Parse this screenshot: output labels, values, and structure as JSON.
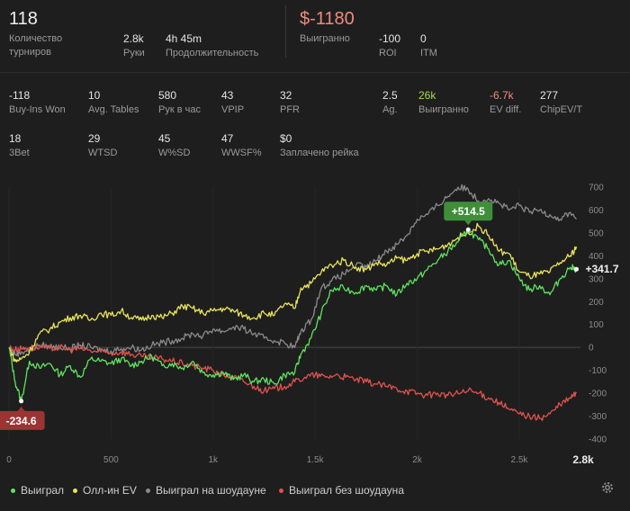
{
  "summary": {
    "tournaments_value": "118",
    "tournaments_label": "Количество турниров",
    "hands_value": "2.8k",
    "hands_label": "Руки",
    "duration_value": "4h 45m",
    "duration_label": "Продолжительность",
    "winnings_value": "$-1180",
    "winnings_label": "Выигранно",
    "roi_value": "-100",
    "roi_label": "ROI",
    "itm_value": "0",
    "itm_label": "ITM"
  },
  "stats_row1": [
    {
      "value": "-118",
      "label": "Buy-Ins Won"
    },
    {
      "value": "10",
      "label": "Avg. Tables"
    },
    {
      "value": "580",
      "label": "Рук в час"
    },
    {
      "value": "43",
      "label": "VPIP"
    },
    {
      "value": "32",
      "label": "PFR"
    },
    {
      "value": "2.5",
      "label": "Ag."
    },
    {
      "value": "26k",
      "label": "Выигранно"
    },
    {
      "value": "-6.7k",
      "label": "EV diff."
    },
    {
      "value": "277",
      "label": "ChipEV/T"
    }
  ],
  "stats_row2": [
    {
      "value": "18",
      "label": "3Bet"
    },
    {
      "value": "29",
      "label": "WTSD"
    },
    {
      "value": "45",
      "label": "W%SD"
    },
    {
      "value": "47",
      "label": "WWSF%"
    },
    {
      "value": "$0",
      "label": "Заплачено рейка"
    }
  ],
  "colors": {
    "won": "#5fe35f",
    "allin_ev": "#e9e45a",
    "showdown": "#8a8a8a",
    "non_showdown": "#e0524e",
    "positive_badge": "#3f8f3a",
    "negative_badge": "#9c3434"
  },
  "chart_data": {
    "type": "line",
    "xlim": [
      0,
      2800
    ],
    "ylim": [
      -400,
      700
    ],
    "xticks": [
      "0",
      "500",
      "1k",
      "1.5k",
      "2k",
      "2.5k"
    ],
    "xmax_label": "2.8k",
    "yticks": [
      "700",
      "600",
      "500",
      "400",
      "300",
      "200",
      "100",
      "0",
      "-100",
      "-200",
      "-300",
      "-400"
    ],
    "max_annotation": "+514.5",
    "min_annotation": "-234.6",
    "end_annotation": "+341.7",
    "series": [
      {
        "name": "Выиграл",
        "key": "won",
        "points": [
          [
            0,
            0
          ],
          [
            30,
            -150
          ],
          [
            60,
            -234.6
          ],
          [
            100,
            -60
          ],
          [
            150,
            -90
          ],
          [
            200,
            -70
          ],
          [
            250,
            -120
          ],
          [
            300,
            -80
          ],
          [
            350,
            -130
          ],
          [
            400,
            -50
          ],
          [
            450,
            -60
          ],
          [
            500,
            -70
          ],
          [
            550,
            -50
          ],
          [
            600,
            -80
          ],
          [
            650,
            -60
          ],
          [
            700,
            -40
          ],
          [
            750,
            -80
          ],
          [
            800,
            -70
          ],
          [
            850,
            -90
          ],
          [
            900,
            -60
          ],
          [
            950,
            -110
          ],
          [
            1000,
            -120
          ],
          [
            1050,
            -110
          ],
          [
            1100,
            -140
          ],
          [
            1150,
            -120
          ],
          [
            1200,
            -150
          ],
          [
            1250,
            -140
          ],
          [
            1300,
            -160
          ],
          [
            1350,
            -120
          ],
          [
            1400,
            -110
          ],
          [
            1430,
            -30
          ],
          [
            1480,
            40
          ],
          [
            1530,
            150
          ],
          [
            1580,
            250
          ],
          [
            1640,
            260
          ],
          [
            1700,
            240
          ],
          [
            1750,
            270
          ],
          [
            1800,
            250
          ],
          [
            1850,
            270
          ],
          [
            1900,
            230
          ],
          [
            1950,
            280
          ],
          [
            2000,
            300
          ],
          [
            2050,
            340
          ],
          [
            2100,
            380
          ],
          [
            2150,
            420
          ],
          [
            2200,
            460
          ],
          [
            2250,
            514.5
          ],
          [
            2300,
            470
          ],
          [
            2350,
            430
          ],
          [
            2400,
            360
          ],
          [
            2450,
            380
          ],
          [
            2500,
            300
          ],
          [
            2550,
            250
          ],
          [
            2600,
            270
          ],
          [
            2650,
            230
          ],
          [
            2700,
            300
          ],
          [
            2750,
            350
          ],
          [
            2780,
            341.7
          ]
        ]
      },
      {
        "name": "Олл-ин EV",
        "key": "allin_ev",
        "points": [
          [
            0,
            0
          ],
          [
            30,
            -60
          ],
          [
            60,
            -50
          ],
          [
            100,
            -20
          ],
          [
            150,
            60
          ],
          [
            200,
            80
          ],
          [
            250,
            110
          ],
          [
            300,
            130
          ],
          [
            350,
            140
          ],
          [
            400,
            120
          ],
          [
            450,
            150
          ],
          [
            500,
            140
          ],
          [
            550,
            160
          ],
          [
            600,
            130
          ],
          [
            650,
            120
          ],
          [
            700,
            140
          ],
          [
            750,
            130
          ],
          [
            800,
            150
          ],
          [
            850,
            180
          ],
          [
            900,
            170
          ],
          [
            950,
            150
          ],
          [
            1000,
            160
          ],
          [
            1050,
            170
          ],
          [
            1100,
            160
          ],
          [
            1150,
            140
          ],
          [
            1200,
            130
          ],
          [
            1250,
            150
          ],
          [
            1300,
            140
          ],
          [
            1350,
            190
          ],
          [
            1400,
            170
          ],
          [
            1430,
            260
          ],
          [
            1480,
            280
          ],
          [
            1530,
            330
          ],
          [
            1580,
            360
          ],
          [
            1640,
            380
          ],
          [
            1700,
            350
          ],
          [
            1750,
            340
          ],
          [
            1800,
            370
          ],
          [
            1850,
            360
          ],
          [
            1900,
            390
          ],
          [
            1950,
            380
          ],
          [
            2000,
            410
          ],
          [
            2050,
            420
          ],
          [
            2100,
            430
          ],
          [
            2150,
            450
          ],
          [
            2200,
            480
          ],
          [
            2250,
            500
          ],
          [
            2300,
            530
          ],
          [
            2350,
            490
          ],
          [
            2400,
            420
          ],
          [
            2450,
            410
          ],
          [
            2500,
            330
          ],
          [
            2550,
            310
          ],
          [
            2600,
            320
          ],
          [
            2650,
            330
          ],
          [
            2700,
            370
          ],
          [
            2750,
            400
          ],
          [
            2780,
            440
          ]
        ]
      },
      {
        "name": "Выиграл на шоудауне",
        "key": "showdown",
        "points": [
          [
            0,
            0
          ],
          [
            30,
            -30
          ],
          [
            60,
            -20
          ],
          [
            100,
            -10
          ],
          [
            150,
            10
          ],
          [
            200,
            5
          ],
          [
            250,
            0
          ],
          [
            300,
            -5
          ],
          [
            350,
            10
          ],
          [
            400,
            0
          ],
          [
            450,
            -10
          ],
          [
            500,
            -15
          ],
          [
            550,
            -5
          ],
          [
            600,
            0
          ],
          [
            650,
            -10
          ],
          [
            700,
            10
          ],
          [
            750,
            20
          ],
          [
            800,
            30
          ],
          [
            850,
            40
          ],
          [
            900,
            60
          ],
          [
            950,
            50
          ],
          [
            1000,
            80
          ],
          [
            1050,
            70
          ],
          [
            1100,
            90
          ],
          [
            1150,
            80
          ],
          [
            1200,
            60
          ],
          [
            1250,
            40
          ],
          [
            1300,
            30
          ],
          [
            1350,
            20
          ],
          [
            1400,
            0
          ],
          [
            1430,
            70
          ],
          [
            1480,
            120
          ],
          [
            1530,
            260
          ],
          [
            1580,
            290
          ],
          [
            1640,
            320
          ],
          [
            1700,
            360
          ],
          [
            1750,
            350
          ],
          [
            1800,
            380
          ],
          [
            1850,
            420
          ],
          [
            1900,
            450
          ],
          [
            1950,
            490
          ],
          [
            2000,
            560
          ],
          [
            2050,
            580
          ],
          [
            2100,
            620
          ],
          [
            2150,
            660
          ],
          [
            2200,
            700
          ],
          [
            2250,
            690
          ],
          [
            2300,
            640
          ],
          [
            2350,
            650
          ],
          [
            2400,
            630
          ],
          [
            2450,
            600
          ],
          [
            2500,
            620
          ],
          [
            2550,
            590
          ],
          [
            2600,
            600
          ],
          [
            2650,
            580
          ],
          [
            2700,
            560
          ],
          [
            2750,
            590
          ],
          [
            2780,
            560
          ]
        ]
      },
      {
        "name": "Выиграл без шоудауна",
        "key": "non_showdown",
        "points": [
          [
            0,
            0
          ],
          [
            30,
            -10
          ],
          [
            60,
            -5
          ],
          [
            100,
            0
          ],
          [
            150,
            0
          ],
          [
            200,
            -5
          ],
          [
            250,
            0
          ],
          [
            300,
            -10
          ],
          [
            350,
            -5
          ],
          [
            400,
            -15
          ],
          [
            450,
            -20
          ],
          [
            500,
            -25
          ],
          [
            550,
            -20
          ],
          [
            600,
            -30
          ],
          [
            650,
            -40
          ],
          [
            700,
            -45
          ],
          [
            750,
            -50
          ],
          [
            800,
            -60
          ],
          [
            850,
            -70
          ],
          [
            900,
            -80
          ],
          [
            950,
            -90
          ],
          [
            1000,
            -100
          ],
          [
            1050,
            -120
          ],
          [
            1100,
            -130
          ],
          [
            1150,
            -150
          ],
          [
            1200,
            -170
          ],
          [
            1250,
            -190
          ],
          [
            1300,
            -180
          ],
          [
            1350,
            -170
          ],
          [
            1400,
            -150
          ],
          [
            1450,
            -130
          ],
          [
            1500,
            -120
          ],
          [
            1550,
            -130
          ],
          [
            1600,
            -120
          ],
          [
            1650,
            -130
          ],
          [
            1700,
            -140
          ],
          [
            1750,
            -150
          ],
          [
            1800,
            -160
          ],
          [
            1850,
            -170
          ],
          [
            1900,
            -180
          ],
          [
            1950,
            -190
          ],
          [
            2000,
            -200
          ],
          [
            2050,
            -210
          ],
          [
            2100,
            -200
          ],
          [
            2150,
            -210
          ],
          [
            2200,
            -200
          ],
          [
            2250,
            -190
          ],
          [
            2300,
            -200
          ],
          [
            2350,
            -220
          ],
          [
            2400,
            -240
          ],
          [
            2450,
            -270
          ],
          [
            2500,
            -290
          ],
          [
            2550,
            -300
          ],
          [
            2600,
            -310
          ],
          [
            2650,
            -290
          ],
          [
            2700,
            -250
          ],
          [
            2750,
            -220
          ],
          [
            2780,
            -200
          ]
        ]
      }
    ]
  }
}
